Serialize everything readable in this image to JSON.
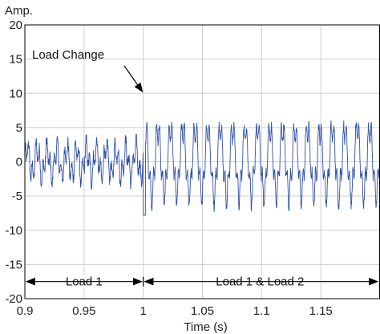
{
  "chart_data": {
    "type": "line",
    "ylabel": "Amp.",
    "xlabel": "Time (s)",
    "xlim": [
      0.9,
      1.2
    ],
    "ylim": [
      -20,
      20
    ],
    "xticks": [
      0.9,
      0.95,
      1,
      1.05,
      1.1,
      1.15
    ],
    "xtick_labels": [
      "0.9",
      "0.95",
      "1",
      "1.05",
      "1.1",
      "1.15"
    ],
    "yticks": [
      -20,
      -15,
      -10,
      -5,
      0,
      5,
      10,
      15,
      20
    ],
    "ytick_labels": [
      "-20",
      "-15",
      "-10",
      "-5",
      "0",
      "5",
      "10",
      "15",
      "20"
    ],
    "grid": true,
    "series": [
      {
        "segments": [
          {
            "x_range": [
              0.9,
              1.0
            ],
            "amplitude_approx": 3.5,
            "min": -4,
            "max": 4
          },
          {
            "x_range": [
              1.0,
              1.2
            ],
            "amplitude_approx": 6,
            "min": -8,
            "max": 6.5
          }
        ],
        "color": "#3050a8"
      }
    ],
    "annotations": {
      "load_change": {
        "text": "Load Change",
        "x": 1.0,
        "y": 10
      },
      "load1_span": {
        "text": "Load 1",
        "x_from": 0.9,
        "x_to": 1.0,
        "y": -17.5
      },
      "load12_span": {
        "text": "Load 1 & Load 2",
        "x_from": 1.0,
        "x_to": 1.2,
        "y": -17.5
      }
    }
  }
}
